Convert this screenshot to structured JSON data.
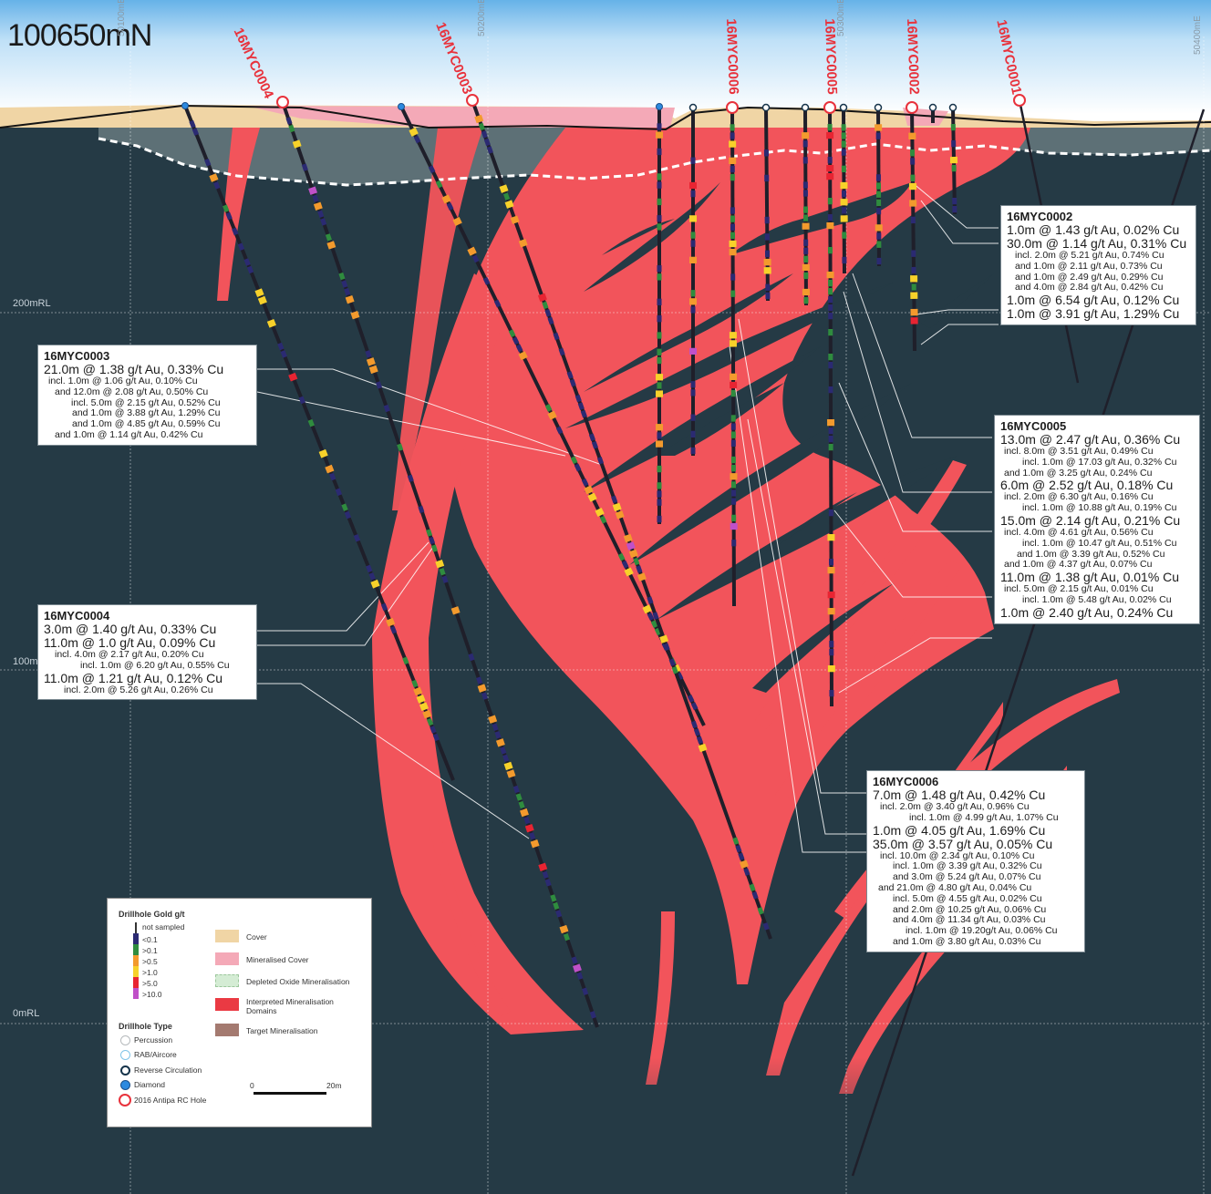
{
  "section": {
    "title": "100650mN"
  },
  "eastings": [
    "50100mE",
    "50200mE",
    "50300mE",
    "50400mE"
  ],
  "rl_labels": [
    "200mRL",
    "100mRL",
    "0mRL"
  ],
  "holes": [
    "16MYC0004",
    "16MYC0003",
    "16MYC0006",
    "16MYC0005",
    "16MYC0002",
    "16MYC0001"
  ],
  "colors": {
    "background": "#253a45",
    "mineralisation": "#f2545b",
    "cover": "#f0d5a5",
    "mineralised_cover": "#f4a9b7",
    "hole_trace": "#1f1f2a",
    "label_red": "#e8323c"
  },
  "info_boxes": [
    {
      "hole": "16MYC0003",
      "lines": [
        {
          "t": "21.0m @ 1.38 g/t Au, 0.33% Cu",
          "main": true,
          "indent": 0
        },
        {
          "t": "incl. 1.0m @ 1.06 g/t Au, 0.10% Cu",
          "main": false,
          "indent": 5
        },
        {
          "t": "and 12.0m @ 2.08 g/t Au, 0.50% Cu",
          "main": false,
          "indent": 12
        },
        {
          "t": "incl. 5.0m @ 2.15 g/t Au, 0.52% Cu",
          "main": false,
          "indent": 30
        },
        {
          "t": "and 1.0m @ 3.88 g/t Au, 1.29% Cu",
          "main": false,
          "indent": 31
        },
        {
          "t": "and 1.0m @ 4.85 g/t Au, 0.59% Cu",
          "main": false,
          "indent": 31
        },
        {
          "t": "and 1.0m @ 1.14 g/t Au, 0.42% Cu",
          "main": false,
          "indent": 12
        }
      ]
    },
    {
      "hole": "16MYC0004",
      "lines": [
        {
          "t": "3.0m @ 1.40 g/t Au, 0.33% Cu",
          "main": true,
          "indent": 0
        },
        {
          "t": "11.0m @ 1.0 g/t Au, 0.09% Cu",
          "main": true,
          "indent": 0
        },
        {
          "t": "incl. 4.0m @ 2.17 g/t Au, 0.20% Cu",
          "main": false,
          "indent": 12
        },
        {
          "t": "incl. 1.0m @ 6.20 g/t Au, 0.55% Cu",
          "main": false,
          "indent": 40
        },
        {
          "t": "11.0m @ 1.21 g/t Au, 0.12% Cu",
          "main": true,
          "indent": 0
        },
        {
          "t": "incl. 2.0m @ 5.26 g/t Au, 0.26% Cu",
          "main": false,
          "indent": 22
        }
      ]
    },
    {
      "hole": "16MYC0002",
      "lines": [
        {
          "t": "1.0m @ 1.43 g/t Au, 0.02% Cu",
          "main": true,
          "indent": 0
        },
        {
          "t": "30.0m @ 1.14 g/t Au, 0.31% Cu",
          "main": true,
          "indent": 0
        },
        {
          "t": "incl. 2.0m @ 5.21 g/t Au, 0.74% Cu",
          "main": false,
          "indent": 9
        },
        {
          "t": "and 1.0m @ 2.11 g/t Au, 0.73% Cu",
          "main": false,
          "indent": 9
        },
        {
          "t": "and 1.0m @ 2.49 g/t Au, 0.29% Cu",
          "main": false,
          "indent": 9
        },
        {
          "t": "and 4.0m @ 2.84 g/t Au, 0.42% Cu",
          "main": false,
          "indent": 9
        },
        {
          "t": "1.0m @ 6.54 g/t Au, 0.12% Cu",
          "main": true,
          "indent": 0
        },
        {
          "t": "1.0m @ 3.91 g/t Au, 1.29% Cu",
          "main": true,
          "indent": 0
        }
      ]
    },
    {
      "hole": "16MYC0005",
      "lines": [
        {
          "t": "13.0m @ 2.47 g/t Au, 0.36% Cu",
          "main": true,
          "indent": 0
        },
        {
          "t": "incl. 8.0m @ 3.51 g/t Au, 0.49% Cu",
          "main": false,
          "indent": 4
        },
        {
          "t": "incl. 1.0m @ 17.03 g/t Au, 0.32% Cu",
          "main": false,
          "indent": 24
        },
        {
          "t": "and 1.0m @ 3.25 g/t Au, 0.24% Cu",
          "main": false,
          "indent": 4
        },
        {
          "t": "6.0m @ 2.52 g/t Au, 0.18% Cu",
          "main": true,
          "indent": 0
        },
        {
          "t": "incl. 2.0m @ 6.30 g/t Au, 0.16% Cu",
          "main": false,
          "indent": 4
        },
        {
          "t": "incl. 1.0m @ 10.88 g/t Au, 0.19% Cu",
          "main": false,
          "indent": 24
        },
        {
          "t": "15.0m @ 2.14 g/t Au, 0.21% Cu",
          "main": true,
          "indent": 0
        },
        {
          "t": "incl. 4.0m @ 4.61 g/t Au, 0.56% Cu",
          "main": false,
          "indent": 4
        },
        {
          "t": "incl. 1.0m @ 10.47 g/t Au, 0.51% Cu",
          "main": false,
          "indent": 24
        },
        {
          "t": "and 1.0m @ 3.39 g/t Au, 0.52% Cu",
          "main": false,
          "indent": 18
        },
        {
          "t": "and 1.0m @ 4.37 g/t Au, 0.07% Cu",
          "main": false,
          "indent": 4
        },
        {
          "t": "11.0m @ 1.38 g/t Au, 0.01% Cu",
          "main": true,
          "indent": 0
        },
        {
          "t": "incl. 5.0m @ 2.15 g/t Au, 0.01% Cu",
          "main": false,
          "indent": 4
        },
        {
          "t": "incl. 1.0m @ 5.48 g/t Au, 0.02% Cu",
          "main": false,
          "indent": 24
        },
        {
          "t": "1.0m @ 2.40 g/t Au, 0.24% Cu",
          "main": true,
          "indent": 0
        }
      ]
    },
    {
      "hole": "16MYC0006",
      "lines": [
        {
          "t": "7.0m @ 1.48 g/t Au, 0.42% Cu",
          "main": true,
          "indent": 0
        },
        {
          "t": "incl. 2.0m @ 3.40 g/t Au, 0.96% Cu",
          "main": false,
          "indent": 8
        },
        {
          "t": "incl. 1.0m @ 4.99 g/t Au, 1.07% Cu",
          "main": false,
          "indent": 40
        },
        {
          "t": "1.0m @ 4.05 g/t Au, 1.69% Cu",
          "main": true,
          "indent": 0
        },
        {
          "t": "35.0m @ 3.57 g/t Au, 0.05% Cu",
          "main": true,
          "indent": 0
        },
        {
          "t": "incl. 10.0m @ 2.34 g/t Au, 0.10% Cu",
          "main": false,
          "indent": 8
        },
        {
          "t": "incl. 1.0m @ 3.39 g/t Au, 0.32% Cu",
          "main": false,
          "indent": 22
        },
        {
          "t": "and 3.0m @ 5.24 g/t Au, 0.07% Cu",
          "main": false,
          "indent": 22
        },
        {
          "t": "and 21.0m @ 4.80 g/t Au, 0.04% Cu",
          "main": false,
          "indent": 6
        },
        {
          "t": "incl. 5.0m @ 4.55 g/t Au, 0.02% Cu",
          "main": false,
          "indent": 22
        },
        {
          "t": "and 2.0m @ 10.25 g/t Au, 0.06% Cu",
          "main": false,
          "indent": 22
        },
        {
          "t": "and 4.0m @ 11.34 g/t Au, 0.03% Cu",
          "main": false,
          "indent": 22
        },
        {
          "t": "incl. 1.0m @ 19.20g/t Au, 0.06% Cu",
          "main": false,
          "indent": 36
        },
        {
          "t": "and 1.0m @ 3.80 g/t Au, 0.03% Cu",
          "main": false,
          "indent": 22
        }
      ]
    }
  ],
  "legend": {
    "gold_title": "Drillhole Gold g/t",
    "gold_classes": [
      "not sampled",
      "<0.1",
      ">0.1",
      ">0.5",
      ">1.0",
      ">5.0",
      ">10.0"
    ],
    "type_title": "Drillhole Type",
    "types": [
      "Percussion",
      "RAB/Aircore",
      "Reverse Circulation",
      "Diamond",
      "2016 Antipa RC Hole"
    ],
    "domains": [
      "Cover",
      "Mineralised Cover",
      "Depleted Oxide Mineralisation",
      "Interpreted Mineralisation Domains",
      "Target Mineralisation"
    ],
    "scale_start": "0",
    "scale_end": "20m"
  }
}
